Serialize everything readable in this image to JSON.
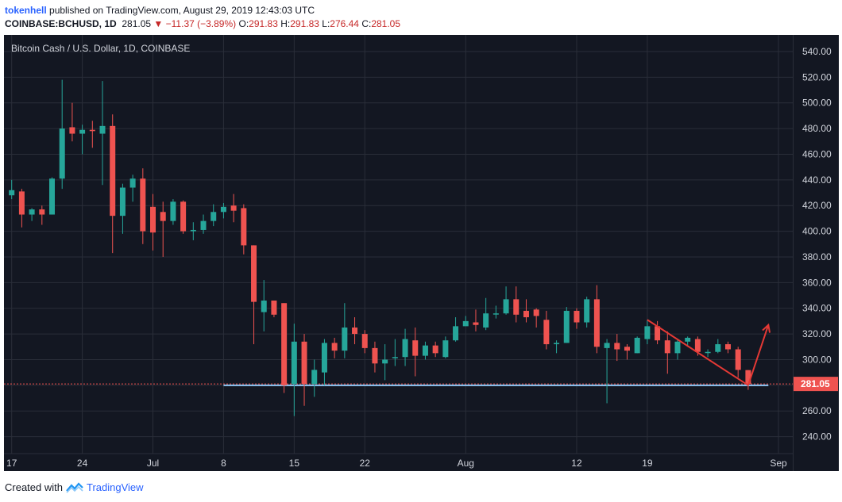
{
  "header": {
    "author": "tokenhell",
    "published_text": "published on TradingView.com, August 29, 2019 12:43:03 UTC"
  },
  "ohlc": {
    "symbol": "COINBASE:BCHUSD, 1D",
    "last": "281.05",
    "change": "−11.37 (−3.89%)",
    "o_label": "O:",
    "o": "291.83",
    "h_label": "H:",
    "h": "291.83",
    "l_label": "L:",
    "l": "276.44",
    "c_label": "C:",
    "c": "281.05"
  },
  "footer": {
    "created_with": "Created with",
    "brand": "TradingView"
  },
  "colors": {
    "up": "#26a69a",
    "down": "#ef5350",
    "bg": "#131722",
    "grid": "#2a2e39",
    "annotation": "#e53935",
    "support": "#90caf9"
  },
  "chart_data": {
    "type": "candlestick",
    "title": "Bitcoin Cash / U.S. Dollar, 1D, COINBASE",
    "ylim": [
      228,
      548
    ],
    "yticks": [
      240,
      260,
      280,
      300,
      320,
      340,
      360,
      380,
      400,
      420,
      440,
      460,
      480,
      500,
      520,
      540
    ],
    "last_price": 281.05,
    "x_ticks": [
      {
        "label": "17",
        "date": "2019-06-17"
      },
      {
        "label": "24",
        "date": "2019-06-24"
      },
      {
        "label": "Jul",
        "date": "2019-07-01"
      },
      {
        "label": "8",
        "date": "2019-07-08"
      },
      {
        "label": "15",
        "date": "2019-07-15"
      },
      {
        "label": "22",
        "date": "2019-07-22"
      },
      {
        "label": "Aug",
        "date": "2019-08-01"
      },
      {
        "label": "12",
        "date": "2019-08-12"
      },
      {
        "label": "19",
        "date": "2019-08-19"
      },
      {
        "label": "Sep",
        "date": "2019-09-01"
      }
    ],
    "x_range": [
      "2019-06-16",
      "2019-09-01"
    ],
    "candles": [
      {
        "d": "2019-06-17",
        "o": 428,
        "h": 440,
        "l": 425,
        "c": 432
      },
      {
        "d": "2019-06-18",
        "o": 431,
        "h": 433,
        "l": 403,
        "c": 413
      },
      {
        "d": "2019-06-19",
        "o": 413,
        "h": 418,
        "l": 408,
        "c": 417
      },
      {
        "d": "2019-06-20",
        "o": 417,
        "h": 420,
        "l": 405,
        "c": 413
      },
      {
        "d": "2019-06-21",
        "o": 413,
        "h": 442,
        "l": 413,
        "c": 441
      },
      {
        "d": "2019-06-22",
        "o": 441,
        "h": 518,
        "l": 433,
        "c": 480
      },
      {
        "d": "2019-06-23",
        "o": 481,
        "h": 500,
        "l": 470,
        "c": 476
      },
      {
        "d": "2019-06-24",
        "o": 476,
        "h": 483,
        "l": 460,
        "c": 479
      },
      {
        "d": "2019-06-25",
        "o": 479,
        "h": 486,
        "l": 465,
        "c": 478
      },
      {
        "d": "2019-06-26",
        "o": 476,
        "h": 517,
        "l": 436,
        "c": 482
      },
      {
        "d": "2019-06-27",
        "o": 482,
        "h": 491,
        "l": 383,
        "c": 412
      },
      {
        "d": "2019-06-28",
        "o": 412,
        "h": 437,
        "l": 398,
        "c": 434
      },
      {
        "d": "2019-06-29",
        "o": 434,
        "h": 444,
        "l": 423,
        "c": 441
      },
      {
        "d": "2019-06-30",
        "o": 441,
        "h": 449,
        "l": 390,
        "c": 400
      },
      {
        "d": "2019-07-01",
        "o": 419,
        "h": 429,
        "l": 385,
        "c": 399
      },
      {
        "d": "2019-07-02",
        "o": 415,
        "h": 423,
        "l": 380,
        "c": 408
      },
      {
        "d": "2019-07-03",
        "o": 408,
        "h": 425,
        "l": 405,
        "c": 423
      },
      {
        "d": "2019-07-04",
        "o": 423,
        "h": 424,
        "l": 398,
        "c": 400
      },
      {
        "d": "2019-07-05",
        "o": 400,
        "h": 407,
        "l": 393,
        "c": 401
      },
      {
        "d": "2019-07-06",
        "o": 401,
        "h": 413,
        "l": 398,
        "c": 408
      },
      {
        "d": "2019-07-07",
        "o": 408,
        "h": 421,
        "l": 404,
        "c": 415
      },
      {
        "d": "2019-07-08",
        "o": 415,
        "h": 422,
        "l": 410,
        "c": 419
      },
      {
        "d": "2019-07-09",
        "o": 420,
        "h": 429,
        "l": 407,
        "c": 416
      },
      {
        "d": "2019-07-10",
        "o": 418,
        "h": 421,
        "l": 382,
        "c": 389
      },
      {
        "d": "2019-07-11",
        "o": 389,
        "h": 389,
        "l": 312,
        "c": 345
      },
      {
        "d": "2019-07-12",
        "o": 337,
        "h": 362,
        "l": 322,
        "c": 346
      },
      {
        "d": "2019-07-13",
        "o": 346,
        "h": 346,
        "l": 333,
        "c": 335
      },
      {
        "d": "2019-07-14",
        "o": 344,
        "h": 344,
        "l": 274,
        "c": 280
      },
      {
        "d": "2019-07-15",
        "o": 281,
        "h": 328,
        "l": 256,
        "c": 314
      },
      {
        "d": "2019-07-16",
        "o": 314,
        "h": 320,
        "l": 264,
        "c": 281
      },
      {
        "d": "2019-07-17",
        "o": 281,
        "h": 300,
        "l": 271,
        "c": 292
      },
      {
        "d": "2019-07-18",
        "o": 290,
        "h": 316,
        "l": 280,
        "c": 313
      },
      {
        "d": "2019-07-19",
        "o": 313,
        "h": 317,
        "l": 301,
        "c": 307
      },
      {
        "d": "2019-07-20",
        "o": 307,
        "h": 344,
        "l": 301,
        "c": 325
      },
      {
        "d": "2019-07-21",
        "o": 325,
        "h": 333,
        "l": 312,
        "c": 320
      },
      {
        "d": "2019-07-22",
        "o": 320,
        "h": 323,
        "l": 305,
        "c": 309
      },
      {
        "d": "2019-07-23",
        "o": 309,
        "h": 314,
        "l": 290,
        "c": 297
      },
      {
        "d": "2019-07-24",
        "o": 297,
        "h": 312,
        "l": 284,
        "c": 300
      },
      {
        "d": "2019-07-25",
        "o": 302,
        "h": 316,
        "l": 295,
        "c": 302
      },
      {
        "d": "2019-07-26",
        "o": 302,
        "h": 324,
        "l": 295,
        "c": 316
      },
      {
        "d": "2019-07-27",
        "o": 315,
        "h": 325,
        "l": 287,
        "c": 303
      },
      {
        "d": "2019-07-28",
        "o": 303,
        "h": 314,
        "l": 300,
        "c": 311
      },
      {
        "d": "2019-07-29",
        "o": 311,
        "h": 314,
        "l": 302,
        "c": 305
      },
      {
        "d": "2019-07-30",
        "o": 302,
        "h": 318,
        "l": 301,
        "c": 315
      },
      {
        "d": "2019-07-31",
        "o": 315,
        "h": 333,
        "l": 314,
        "c": 326
      },
      {
        "d": "2019-08-01",
        "o": 326,
        "h": 334,
        "l": 327,
        "c": 330
      },
      {
        "d": "2019-08-02",
        "o": 329,
        "h": 339,
        "l": 322,
        "c": 327
      },
      {
        "d": "2019-08-03",
        "o": 325,
        "h": 348,
        "l": 323,
        "c": 336
      },
      {
        "d": "2019-08-04",
        "o": 336,
        "h": 342,
        "l": 332,
        "c": 336
      },
      {
        "d": "2019-08-05",
        "o": 336,
        "h": 357,
        "l": 335,
        "c": 347
      },
      {
        "d": "2019-08-06",
        "o": 347,
        "h": 357,
        "l": 329,
        "c": 335
      },
      {
        "d": "2019-08-07",
        "o": 338,
        "h": 347,
        "l": 329,
        "c": 333
      },
      {
        "d": "2019-08-08",
        "o": 339,
        "h": 340,
        "l": 325,
        "c": 334
      },
      {
        "d": "2019-08-09",
        "o": 331,
        "h": 338,
        "l": 308,
        "c": 312
      },
      {
        "d": "2019-08-10",
        "o": 312,
        "h": 315,
        "l": 305,
        "c": 313
      },
      {
        "d": "2019-08-11",
        "o": 313,
        "h": 341,
        "l": 313,
        "c": 338
      },
      {
        "d": "2019-08-12",
        "o": 338,
        "h": 340,
        "l": 324,
        "c": 329
      },
      {
        "d": "2019-08-13",
        "o": 329,
        "h": 349,
        "l": 325,
        "c": 347
      },
      {
        "d": "2019-08-14",
        "o": 347,
        "h": 358,
        "l": 305,
        "c": 310
      },
      {
        "d": "2019-08-15",
        "o": 309,
        "h": 316,
        "l": 266,
        "c": 313
      },
      {
        "d": "2019-08-16",
        "o": 313,
        "h": 320,
        "l": 299,
        "c": 308
      },
      {
        "d": "2019-08-17",
        "o": 310,
        "h": 312,
        "l": 300,
        "c": 307
      },
      {
        "d": "2019-08-18",
        "o": 305,
        "h": 318,
        "l": 305,
        "c": 317
      },
      {
        "d": "2019-08-19",
        "o": 316,
        "h": 331,
        "l": 312,
        "c": 326
      },
      {
        "d": "2019-08-20",
        "o": 326,
        "h": 330,
        "l": 312,
        "c": 315
      },
      {
        "d": "2019-08-21",
        "o": 315,
        "h": 322,
        "l": 289,
        "c": 305
      },
      {
        "d": "2019-08-22",
        "o": 305,
        "h": 316,
        "l": 300,
        "c": 314
      },
      {
        "d": "2019-08-23",
        "o": 314,
        "h": 318,
        "l": 310,
        "c": 317
      },
      {
        "d": "2019-08-24",
        "o": 316,
        "h": 318,
        "l": 303,
        "c": 306
      },
      {
        "d": "2019-08-25",
        "o": 306,
        "h": 308,
        "l": 302,
        "c": 306
      },
      {
        "d": "2019-08-26",
        "o": 306,
        "h": 316,
        "l": 305,
        "c": 312
      },
      {
        "d": "2019-08-27",
        "o": 312,
        "h": 314,
        "l": 305,
        "c": 308
      },
      {
        "d": "2019-08-28",
        "o": 308,
        "h": 310,
        "l": 286,
        "c": 292
      },
      {
        "d": "2019-08-29",
        "o": 291.83,
        "h": 291.83,
        "l": 276.44,
        "c": 281.05
      }
    ],
    "support_line": {
      "from": "2019-07-08",
      "to": "2019-08-31",
      "price": 280
    },
    "annotation": {
      "trendline": [
        {
          "d": "2019-08-19",
          "p": 331
        },
        {
          "d": "2019-08-29",
          "p": 280
        }
      ],
      "arrow": [
        {
          "d": "2019-08-29",
          "p": 280
        },
        {
          "d": "2019-08-31",
          "p": 327
        }
      ]
    }
  }
}
